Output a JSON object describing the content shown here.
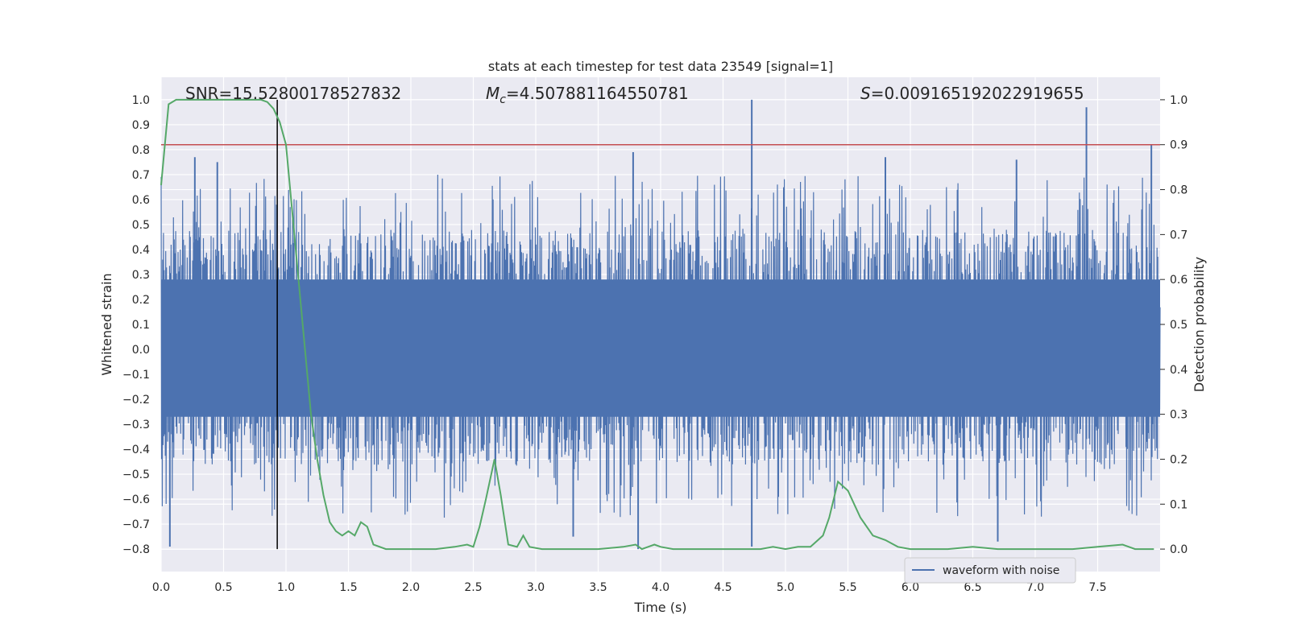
{
  "chart_data": {
    "type": "line",
    "title": "stats at each timestep for test data 23549 [signal=1]",
    "xlabel": "Time (s)",
    "ylabel": "Whitened strain",
    "y2label": "Detection probability",
    "xlim": [
      0.0,
      8.0
    ],
    "ylim": [
      -0.89,
      1.09
    ],
    "y2lim": [
      -0.05,
      1.05
    ],
    "x_ticks": [
      "0.0",
      "0.5",
      "1.0",
      "1.5",
      "2.0",
      "2.5",
      "3.0",
      "3.5",
      "4.0",
      "4.5",
      "5.0",
      "5.5",
      "6.0",
      "6.5",
      "7.0",
      "7.5"
    ],
    "y_ticks": [
      "1.0",
      "0.9",
      "0.8",
      "0.7",
      "0.6",
      "0.5",
      "0.4",
      "0.3",
      "0.2",
      "0.1",
      "0.0",
      "−0.1",
      "−0.2",
      "−0.3",
      "−0.4",
      "−0.5",
      "−0.6",
      "−0.7",
      "−0.8"
    ],
    "y2_ticks": [
      "1.0",
      "0.9",
      "0.8",
      "0.7",
      "0.6",
      "0.5",
      "0.4",
      "0.3",
      "0.2",
      "0.1",
      "0.0"
    ],
    "annotations": {
      "snr_label": "SNR=15.52800178527832",
      "mc_symbol": "M",
      "mc_subscript": "c",
      "mc_value": "=4.507881164550781",
      "s_symbol": "S",
      "s_value": "=0.009165192022919655"
    },
    "legend": {
      "position": "bottom-right",
      "entries": [
        "waveform with noise"
      ]
    },
    "threshold_probability": 0.9,
    "detection_time": 0.93,
    "colors": {
      "waveform": "#4c72b0",
      "probability": "#55a868",
      "threshold": "#c44e52",
      "marker": "#000000",
      "plot_bg": "#eaeaf2",
      "grid": "#ffffff"
    },
    "waveform": {
      "description_free": true,
      "band_upper": 0.28,
      "band_lower": -0.27,
      "peaks": [
        {
          "x": 4.73,
          "y": 1.0
        },
        {
          "x": 7.41,
          "y": 0.97
        },
        {
          "x": 7.93,
          "y": 0.82
        },
        {
          "x": 3.78,
          "y": 0.79
        },
        {
          "x": 0.27,
          "y": 0.77
        },
        {
          "x": 0.45,
          "y": 0.75
        },
        {
          "x": 5.8,
          "y": 0.77
        },
        {
          "x": 6.85,
          "y": 0.76
        },
        {
          "x": 4.73,
          "y": -0.79
        },
        {
          "x": 3.82,
          "y": -0.8
        },
        {
          "x": 0.07,
          "y": -0.79
        },
        {
          "x": 6.7,
          "y": -0.77
        },
        {
          "x": 3.3,
          "y": -0.75
        }
      ]
    },
    "probability_series": {
      "x": [
        0.0,
        0.06,
        0.12,
        0.2,
        0.3,
        0.4,
        0.5,
        0.6,
        0.7,
        0.8,
        0.85,
        0.9,
        0.95,
        1.0,
        1.05,
        1.1,
        1.15,
        1.2,
        1.25,
        1.3,
        1.35,
        1.4,
        1.45,
        1.5,
        1.55,
        1.6,
        1.65,
        1.7,
        1.8,
        2.0,
        2.2,
        2.35,
        2.45,
        2.5,
        2.55,
        2.6,
        2.67,
        2.72,
        2.78,
        2.85,
        2.9,
        2.95,
        3.05,
        3.2,
        3.5,
        3.7,
        3.8,
        3.85,
        3.9,
        3.95,
        4.0,
        4.1,
        4.2,
        4.4,
        4.6,
        4.8,
        4.9,
        5.0,
        5.1,
        5.2,
        5.3,
        5.35,
        5.42,
        5.5,
        5.6,
        5.7,
        5.8,
        5.9,
        6.0,
        6.3,
        6.5,
        6.7,
        7.0,
        7.3,
        7.5,
        7.7,
        7.8,
        7.95
      ],
      "y": [
        0.81,
        0.99,
        1.0,
        1.0,
        1.0,
        1.0,
        1.0,
        1.0,
        1.0,
        1.0,
        0.995,
        0.98,
        0.95,
        0.9,
        0.75,
        0.6,
        0.45,
        0.3,
        0.2,
        0.12,
        0.06,
        0.04,
        0.03,
        0.04,
        0.03,
        0.06,
        0.05,
        0.01,
        0.0,
        0.0,
        0.0,
        0.005,
        0.01,
        0.005,
        0.05,
        0.11,
        0.2,
        0.12,
        0.01,
        0.005,
        0.03,
        0.005,
        0.0,
        0.0,
        0.0,
        0.005,
        0.01,
        0.0,
        0.005,
        0.01,
        0.005,
        0.0,
        0.0,
        0.0,
        0.0,
        0.0,
        0.005,
        0.0,
        0.005,
        0.005,
        0.03,
        0.07,
        0.15,
        0.13,
        0.07,
        0.03,
        0.02,
        0.005,
        0.0,
        0.0,
        0.005,
        0.0,
        0.0,
        0.0,
        0.005,
        0.01,
        0.0,
        0.0
      ]
    }
  }
}
